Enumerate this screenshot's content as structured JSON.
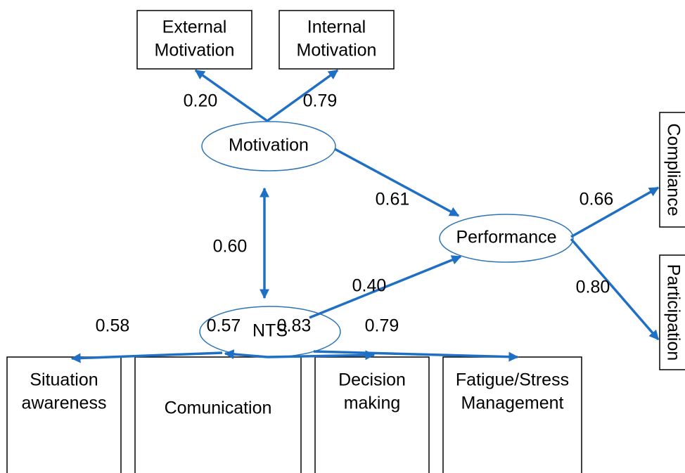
{
  "nodes": [
    {
      "label": [
        "External",
        "Motivation"
      ]
    },
    {
      "label": [
        "Internal",
        "Motivation"
      ]
    },
    {
      "label": [
        "Motivation"
      ]
    },
    {
      "label": [
        "NTS"
      ]
    },
    {
      "label": [
        "Performance"
      ]
    },
    {
      "label": [
        "Compliance"
      ]
    },
    {
      "label": [
        "Participation"
      ]
    },
    {
      "label": [
        "Situation",
        "awareness"
      ]
    },
    {
      "label": [
        "Comunication"
      ]
    },
    {
      "label": [
        "Decision",
        "making"
      ]
    },
    {
      "label": [
        "Fatigue/Stress",
        "Management"
      ]
    }
  ],
  "edges": [
    {
      "from": "Motivation",
      "to": "External Motivation",
      "label": "0.20"
    },
    {
      "from": "Motivation",
      "to": "Internal Motivation",
      "label": "0.79"
    },
    {
      "from": "Motivation",
      "to": "Performance",
      "label": "0.61"
    },
    {
      "from": "Motivation",
      "to": "NTS",
      "label": "0.60"
    },
    {
      "from": "NTS",
      "to": "Performance",
      "label": "0.40"
    },
    {
      "from": "Performance",
      "to": "Compliance",
      "label": "0.66"
    },
    {
      "from": "Performance",
      "to": "Participation",
      "label": "0.80"
    },
    {
      "from": "NTS",
      "to": "Situation awareness",
      "label": "0.58"
    },
    {
      "from": "NTS",
      "to": "Comunication",
      "label": "0.57"
    },
    {
      "from": "NTS",
      "to": "Decision making",
      "label": "0.83"
    },
    {
      "from": "NTS",
      "to": "Fatigue/Stress Management",
      "label": "0.79"
    }
  ]
}
